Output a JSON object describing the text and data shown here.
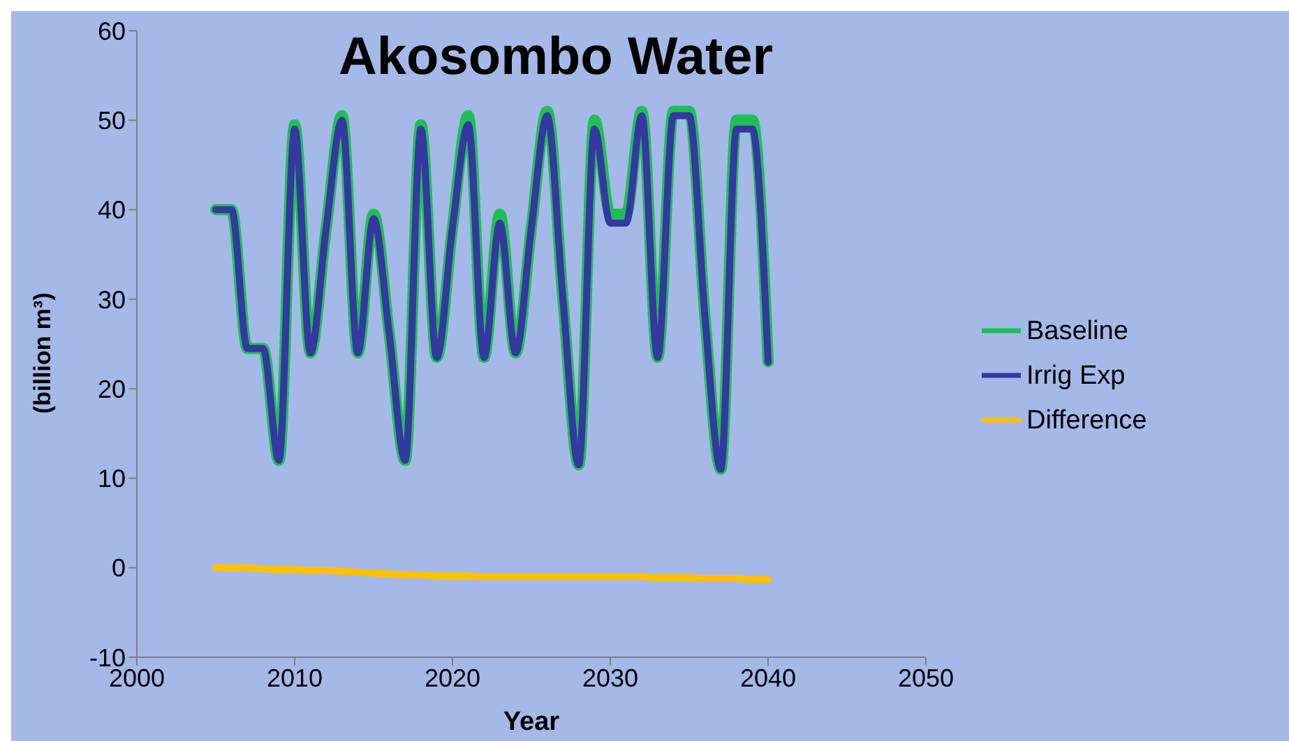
{
  "chart_data": {
    "type": "line",
    "title": "Akosombo Water",
    "xlabel": "Year",
    "ylabel": "(billion m³)",
    "x": [
      2005,
      2006,
      2007,
      2008,
      2009,
      2010,
      2011,
      2012,
      2013,
      2014,
      2015,
      2016,
      2017,
      2018,
      2019,
      2020,
      2021,
      2022,
      2023,
      2024,
      2025,
      2026,
      2027,
      2028,
      2029,
      2030,
      2031,
      2032,
      2033,
      2034,
      2035,
      2036,
      2037,
      2038,
      2039,
      2040
    ],
    "series": [
      {
        "name": "Baseline",
        "color": "#1fbf55",
        "values": [
          40,
          40,
          24.5,
          24.5,
          12,
          49.5,
          24,
          38,
          50.5,
          24,
          39.5,
          26,
          12,
          49.5,
          23.5,
          38,
          50.5,
          23.5,
          39.5,
          24,
          38,
          51,
          30,
          11.5,
          50,
          39.5,
          39.5,
          51,
          23.5,
          51,
          51,
          28,
          11,
          50,
          50,
          23
        ]
      },
      {
        "name": "Irrig Exp",
        "color": "#3538a0",
        "values": [
          40,
          40,
          24.5,
          24.5,
          12,
          49,
          24,
          38,
          50,
          24,
          39,
          26,
          12,
          49,
          23.5,
          38,
          49.5,
          23.5,
          38.5,
          24,
          38,
          50.5,
          30,
          11.5,
          49,
          38.5,
          38.5,
          50.5,
          23.5,
          50.5,
          50.5,
          28,
          11,
          49,
          49,
          23
        ]
      },
      {
        "name": "Difference",
        "color": "#ffc000",
        "values": [
          0,
          0,
          0,
          -0.1,
          -0.2,
          -0.2,
          -0.3,
          -0.3,
          -0.4,
          -0.5,
          -0.6,
          -0.7,
          -0.8,
          -0.8,
          -0.9,
          -0.9,
          -0.9,
          -1,
          -1,
          -1,
          -1,
          -1,
          -1,
          -1,
          -1,
          -1,
          -1,
          -1,
          -1.1,
          -1.1,
          -1.1,
          -1.2,
          -1.2,
          -1.2,
          -1.3,
          -1.3
        ]
      }
    ],
    "xlim": [
      2000,
      2050
    ],
    "xticks": [
      2000,
      2010,
      2020,
      2030,
      2040,
      2050
    ],
    "ylim": [
      -10,
      60
    ],
    "yticks": [
      -10,
      0,
      10,
      20,
      30,
      40,
      50,
      60
    ],
    "grid": false,
    "legend": "right",
    "marker": "none",
    "line_style": "solid"
  }
}
